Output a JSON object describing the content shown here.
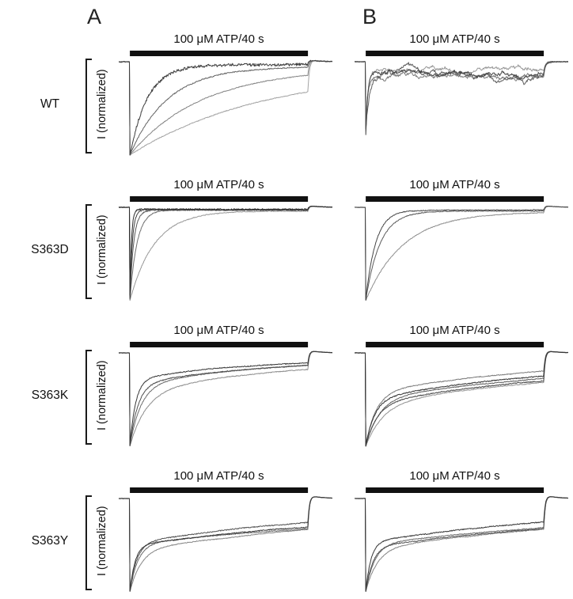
{
  "figure": {
    "columns": [
      {
        "letter": "A"
      },
      {
        "letter": "B"
      }
    ],
    "rows": [
      {
        "label": "WT",
        "ylabel": "I (normalized)"
      },
      {
        "label": "S363D",
        "ylabel": "I (normalized)"
      },
      {
        "label": "S363K",
        "ylabel": "I (normalized)"
      },
      {
        "label": "S363Y",
        "ylabel": "I (normalized)"
      }
    ]
  },
  "chart_data": {
    "type": "line",
    "x_unit": "s",
    "x_range": [
      -2.5,
      45.5
    ],
    "y_axis_label": "I (normalized)",
    "y_range": [
      -1.05,
      0.1
    ],
    "application_bar": {
      "label": "100 μM ATP/40 s",
      "start_s": 0,
      "end_s": 40
    },
    "panels": [
      {
        "id": "A-WT",
        "column": "A",
        "row": "WT",
        "title": "100 μM ATP/40 s",
        "traces": [
          {
            "color": "#3d3d3d",
            "peak": -1,
            "frac_fast": 1,
            "tau_fast_s": 4,
            "plateau": -0.03,
            "noise": 0.015,
            "wander": 0.004,
            "rebound": 0.02
          },
          {
            "color": "#636363",
            "peak": -1,
            "frac_fast": 1,
            "tau_fast_s": 8.5,
            "plateau": -0.05,
            "noise": 0.005,
            "wander": 0.003,
            "rebound": 0.02
          },
          {
            "color": "#858585",
            "peak": -1,
            "frac_fast": 1,
            "tau_fast_s": 16,
            "plateau": -0.07,
            "noise": 0.004,
            "wander": 0.002,
            "rebound": 0.02
          },
          {
            "color": "#a3a3a3",
            "peak": -1,
            "frac_fast": 1,
            "tau_fast_s": 30,
            "plateau": -0.08,
            "noise": 0.004,
            "wander": 0.002,
            "rebound": 0.03
          }
        ]
      },
      {
        "id": "B-WT",
        "column": "B",
        "row": "WT",
        "title": "100 μM ATP/40 s",
        "traces": [
          {
            "color": "#474747",
            "peak": -0.82,
            "frac_fast": 1,
            "tau_fast_s": 0.5,
            "plateau": -0.1,
            "noise": 0.01,
            "wander": 0.05,
            "rebound": 0
          },
          {
            "color": "#5e5e5e",
            "peak": -0.75,
            "frac_fast": 1,
            "tau_fast_s": 0.9,
            "plateau": -0.14,
            "noise": 0.009,
            "wander": 0.06,
            "rebound": 0
          },
          {
            "color": "#7b7b7b",
            "peak": -0.7,
            "frac_fast": 1,
            "tau_fast_s": 0.4,
            "plateau": -0.17,
            "noise": 0.008,
            "wander": 0.05,
            "rebound": 0
          },
          {
            "color": "#979797",
            "peak": -0.65,
            "frac_fast": 1,
            "tau_fast_s": 0.6,
            "plateau": -0.08,
            "noise": 0.008,
            "wander": 0.04,
            "rebound": 0
          }
        ]
      },
      {
        "id": "A-S363D",
        "column": "A",
        "row": "S363D",
        "title": "100 μM ATP/40 s",
        "traces": [
          {
            "color": "#2e2e2e",
            "peak": -1,
            "frac_fast": 1,
            "tau_fast_s": 0.35,
            "plateau": -0.02,
            "noise": 0.007,
            "wander": 0.002,
            "rebound": 0.02
          },
          {
            "color": "#404040",
            "peak": -1,
            "frac_fast": 1,
            "tau_fast_s": 0.55,
            "plateau": -0.025,
            "noise": 0.006,
            "wander": 0.002,
            "rebound": 0.02
          },
          {
            "color": "#575757",
            "peak": -1,
            "frac_fast": 1,
            "tau_fast_s": 0.85,
            "plateau": -0.03,
            "noise": 0.006,
            "wander": 0.002,
            "rebound": 0.02
          },
          {
            "color": "#6f6f6f",
            "peak": -1,
            "frac_fast": 1,
            "tau_fast_s": 1.6,
            "plateau": -0.03,
            "noise": 0.005,
            "wander": 0.002,
            "rebound": 0.02
          },
          {
            "color": "#989898",
            "peak": -1,
            "frac_fast": 1,
            "tau_fast_s": 5.5,
            "plateau": -0.04,
            "noise": 0.004,
            "wander": 0.002,
            "rebound": 0.02
          }
        ]
      },
      {
        "id": "B-S363D",
        "column": "B",
        "row": "S363D",
        "title": "100 μM ATP/40 s",
        "traces": [
          {
            "color": "#454545",
            "peak": -1,
            "frac_fast": 1,
            "tau_fast_s": 2.2,
            "plateau": -0.03,
            "noise": 0.004,
            "wander": 0.002,
            "rebound": 0.02
          },
          {
            "color": "#5c5c5c",
            "peak": -1,
            "frac_fast": 1,
            "tau_fast_s": 3.2,
            "plateau": -0.04,
            "noise": 0.004,
            "wander": 0.002,
            "rebound": 0.02
          },
          {
            "color": "#8f8f8f",
            "peak": -1,
            "frac_fast": 1,
            "tau_fast_s": 8.5,
            "plateau": -0.05,
            "noise": 0.004,
            "wander": 0.002,
            "rebound": 0.02
          }
        ]
      },
      {
        "id": "A-S363K",
        "column": "A",
        "row": "S363K",
        "title": "100 μM ATP/40 s",
        "traces": [
          {
            "color": "#383838",
            "peak": -1,
            "frac_fast": 0.75,
            "tau_fast_s": 1.3,
            "tau_slow_s": 28,
            "plateau": -0.05,
            "noise": 0.005,
            "wander": 0.002,
            "rebound": 0.03
          },
          {
            "color": "#4f4f4f",
            "peak": -1,
            "frac_fast": 0.7,
            "tau_fast_s": 1.8,
            "tau_slow_s": 30,
            "plateau": -0.06,
            "noise": 0.005,
            "wander": 0.002,
            "rebound": 0.03
          },
          {
            "color": "#6d6d6d",
            "peak": -1,
            "frac_fast": 0.68,
            "tau_fast_s": 2.4,
            "tau_slow_s": 26,
            "plateau": -0.07,
            "noise": 0.004,
            "wander": 0.002,
            "rebound": 0.03
          },
          {
            "color": "#8d8d8d",
            "peak": -1,
            "frac_fast": 0.6,
            "tau_fast_s": 3.5,
            "tau_slow_s": 30,
            "plateau": -0.08,
            "noise": 0.004,
            "wander": 0.002,
            "rebound": 0.03
          }
        ]
      },
      {
        "id": "B-S363K",
        "column": "B",
        "row": "S363K",
        "title": "100 μM ATP/40 s",
        "traces": [
          {
            "color": "#343434",
            "peak": -1,
            "frac_fast": 0.55,
            "tau_fast_s": 2.0,
            "tau_slow_s": 40,
            "plateau": -0.1,
            "noise": 0.005,
            "wander": 0.003,
            "rebound": 0.03
          },
          {
            "color": "#484848",
            "peak": -1,
            "frac_fast": 0.5,
            "tau_fast_s": 2.5,
            "tau_slow_s": 45,
            "plateau": -0.12,
            "noise": 0.005,
            "wander": 0.003,
            "rebound": 0.03
          },
          {
            "color": "#606060",
            "peak": -1,
            "frac_fast": 0.55,
            "tau_fast_s": 3.0,
            "tau_slow_s": 50,
            "plateau": -0.09,
            "noise": 0.004,
            "wander": 0.003,
            "rebound": 0.03
          },
          {
            "color": "#7a7a7a",
            "peak": -1,
            "frac_fast": 0.6,
            "tau_fast_s": 2.2,
            "tau_slow_s": 35,
            "plateau": -0.08,
            "noise": 0.004,
            "wander": 0.003,
            "rebound": 0.03
          },
          {
            "color": "#949494",
            "peak": -1,
            "frac_fast": 0.5,
            "tau_fast_s": 4.0,
            "tau_slow_s": 55,
            "plateau": -0.1,
            "noise": 0.004,
            "wander": 0.003,
            "rebound": 0.03
          }
        ]
      },
      {
        "id": "A-S363Y",
        "column": "A",
        "row": "S363Y",
        "title": "100 μM ATP/40 s",
        "traces": [
          {
            "color": "#383838",
            "peak": -1,
            "frac_fast": 0.5,
            "tau_fast_s": 1.2,
            "tau_slow_s": 80,
            "plateau": 0.0,
            "noise": 0.005,
            "wander": 0.003,
            "rebound": 0.04
          },
          {
            "color": "#515151",
            "peak": -1,
            "frac_fast": 0.52,
            "tau_fast_s": 1.5,
            "tau_slow_s": 60,
            "plateau": -0.01,
            "noise": 0.005,
            "wander": 0.003,
            "rebound": 0.04
          },
          {
            "color": "#6b6b6b",
            "peak": -1,
            "frac_fast": 0.52,
            "tau_fast_s": 1.8,
            "tau_slow_s": 90,
            "plateau": -0.02,
            "noise": 0.004,
            "wander": 0.003,
            "rebound": 0.04
          },
          {
            "color": "#878787",
            "peak": -1,
            "frac_fast": 0.45,
            "tau_fast_s": 2.5,
            "tau_slow_s": 75,
            "plateau": -0.01,
            "noise": 0.004,
            "wander": 0.003,
            "rebound": 0.04
          }
        ]
      },
      {
        "id": "B-S363Y",
        "column": "B",
        "row": "S363Y",
        "title": "100 μM ATP/40 s",
        "traces": [
          {
            "color": "#383838",
            "peak": -1,
            "frac_fast": 0.55,
            "tau_fast_s": 1.2,
            "tau_slow_s": 60,
            "plateau": -0.03,
            "noise": 0.005,
            "wander": 0.003,
            "rebound": 0.04
          },
          {
            "color": "#515151",
            "peak": -1,
            "frac_fast": 0.5,
            "tau_fast_s": 1.6,
            "tau_slow_s": 75,
            "plateau": -0.04,
            "noise": 0.005,
            "wander": 0.003,
            "rebound": 0.04
          },
          {
            "color": "#6b6b6b",
            "peak": -1,
            "frac_fast": 0.52,
            "tau_fast_s": 2.0,
            "tau_slow_s": 85,
            "plateau": -0.02,
            "noise": 0.004,
            "wander": 0.003,
            "rebound": 0.04
          },
          {
            "color": "#858585",
            "peak": -1,
            "frac_fast": 0.48,
            "tau_fast_s": 2.6,
            "tau_slow_s": 70,
            "plateau": -0.05,
            "noise": 0.004,
            "wander": 0.003,
            "rebound": 0.04
          }
        ]
      }
    ]
  }
}
